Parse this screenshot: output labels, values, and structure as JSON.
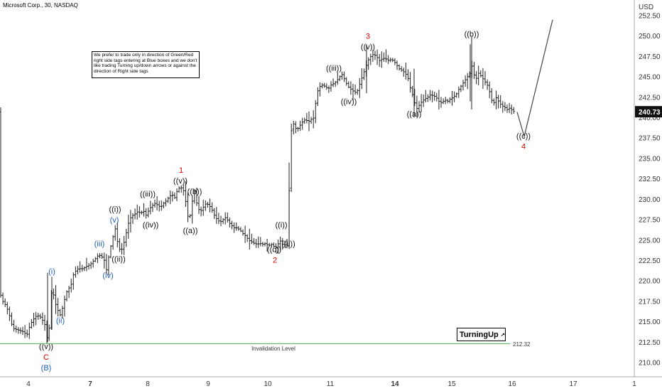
{
  "header": {
    "title": "Microsoft Corp., 30, NASDAQ",
    "currency": "USD"
  },
  "note": "We prefer to trade only in direction of Green/Red right side tags entering at Blue boxes and we don't like trading Turning up/down arrows or against the direction of Right side tags",
  "logo": {
    "text": "TurningUp",
    "icon": "arrow-up-right-icon"
  },
  "invalidation": {
    "label": "Invalidation Level",
    "value": 212.32,
    "value_text": "212.32",
    "color": "#4caf50"
  },
  "current_price": {
    "value": 240.73,
    "text": "240.73"
  },
  "colors": {
    "black": "#111111",
    "red": "#d60000",
    "blue": "#1f5fbf",
    "invalidation": "#4caf50"
  },
  "chart_data": {
    "type": "ohlc",
    "ylim": [
      209,
      253
    ],
    "y_ticks": [
      "210.00",
      "212.50",
      "215.00",
      "217.50",
      "220.00",
      "222.50",
      "225.00",
      "227.50",
      "230.00",
      "232.50",
      "235.00",
      "237.50",
      "240.00",
      "242.50",
      "245.00",
      "247.50",
      "250.00",
      "252.50"
    ],
    "x_ticks": [
      "4",
      "7",
      "8",
      "9",
      "10",
      "11",
      "14",
      "15",
      "16",
      "17",
      "1"
    ],
    "price_path": [
      [
        0,
        218.5
      ],
      [
        4,
        217.5
      ],
      [
        8,
        217.0
      ],
      [
        12,
        216.2
      ],
      [
        18,
        214.2
      ],
      [
        25,
        214.0
      ],
      [
        32,
        213.8
      ],
      [
        38,
        213.4
      ],
      [
        42,
        214.5
      ],
      [
        46,
        215.2
      ],
      [
        52,
        215.8
      ],
      [
        58,
        215.5
      ],
      [
        64,
        214.5
      ],
      [
        67,
        212.5
      ],
      [
        70,
        214.8
      ],
      [
        73,
        219.5
      ],
      [
        77,
        217.5
      ],
      [
        81,
        216.5
      ],
      [
        85,
        215.8
      ],
      [
        89,
        217.0
      ],
      [
        93,
        218.5
      ],
      [
        96,
        219.0
      ],
      [
        100,
        219.5
      ],
      [
        104,
        221.0
      ],
      [
        110,
        221.5
      ],
      [
        116,
        221.5
      ],
      [
        122,
        221.8
      ],
      [
        127,
        222.0
      ],
      [
        131,
        222.4
      ],
      [
        135,
        222.8
      ],
      [
        139,
        223.2
      ],
      [
        143,
        223.0
      ],
      [
        147,
        222.5
      ],
      [
        150,
        221.3
      ],
      [
        154,
        223.5
      ],
      [
        158,
        225.0
      ],
      [
        162,
        226.5
      ],
      [
        166,
        224.5
      ],
      [
        170,
        223.5
      ],
      [
        174,
        224.5
      ],
      [
        178,
        226.0
      ],
      [
        182,
        227.5
      ],
      [
        186,
        228.0
      ],
      [
        190,
        228.2
      ],
      [
        194,
        228.5
      ],
      [
        198,
        228.3
      ],
      [
        202,
        228.6
      ],
      [
        206,
        228.0
      ],
      [
        210,
        228.8
      ],
      [
        214,
        229.2
      ],
      [
        218,
        229.5
      ],
      [
        222,
        229.3
      ],
      [
        226,
        229.0
      ],
      [
        230,
        229.5
      ],
      [
        234,
        229.8
      ],
      [
        238,
        230.3
      ],
      [
        242,
        230.6
      ],
      [
        246,
        230.2
      ],
      [
        250,
        231.2
      ],
      [
        254,
        231.5
      ],
      [
        258,
        231.2
      ],
      [
        262,
        229.5
      ],
      [
        266,
        227.0
      ],
      [
        270,
        229.5
      ],
      [
        274,
        231.0
      ],
      [
        278,
        229.0
      ],
      [
        282,
        228.5
      ],
      [
        286,
        229.0
      ],
      [
        290,
        229.5
      ],
      [
        294,
        229.3
      ],
      [
        298,
        228.8
      ],
      [
        302,
        228.0
      ],
      [
        306,
        227.5
      ],
      [
        310,
        227.2
      ],
      [
        314,
        227.5
      ],
      [
        318,
        227.8
      ],
      [
        322,
        227.2
      ],
      [
        326,
        226.8
      ],
      [
        330,
        226.5
      ],
      [
        334,
        226.5
      ],
      [
        338,
        226.2
      ],
      [
        342,
        225.8
      ],
      [
        346,
        225.5
      ],
      [
        350,
        225.0
      ],
      [
        354,
        224.8
      ],
      [
        358,
        224.6
      ],
      [
        362,
        224.5
      ],
      [
        366,
        224.6
      ],
      [
        370,
        224.5
      ],
      [
        374,
        224.6
      ],
      [
        378,
        224.3
      ],
      [
        382,
        224.5
      ],
      [
        386,
        224.2
      ],
      [
        390,
        224.0
      ],
      [
        393,
        225.0
      ],
      [
        396,
        224.8
      ],
      [
        399,
        224.3
      ],
      [
        402,
        224.5
      ],
      [
        405,
        224.2
      ],
      [
        408,
        234.0
      ],
      [
        411,
        240.0
      ],
      [
        414,
        239.0
      ],
      [
        418,
        238.5
      ],
      [
        422,
        239.0
      ],
      [
        426,
        239.5
      ],
      [
        430,
        239.8
      ],
      [
        434,
        239.5
      ],
      [
        438,
        239.8
      ],
      [
        442,
        240.0
      ],
      [
        446,
        243.0
      ],
      [
        450,
        243.8
      ],
      [
        454,
        244.0
      ],
      [
        458,
        243.8
      ],
      [
        462,
        243.5
      ],
      [
        466,
        244.0
      ],
      [
        470,
        244.2
      ],
      [
        474,
        244.5
      ],
      [
        478,
        245.0
      ],
      [
        482,
        245.3
      ],
      [
        486,
        244.5
      ],
      [
        490,
        243.8
      ],
      [
        494,
        243.5
      ],
      [
        498,
        243.2
      ],
      [
        502,
        243.0
      ],
      [
        506,
        244.0
      ],
      [
        510,
        245.0
      ],
      [
        514,
        246.0
      ],
      [
        518,
        247.0
      ],
      [
        522,
        247.5
      ],
      [
        526,
        247.8
      ],
      [
        530,
        247.5
      ],
      [
        534,
        247.0
      ],
      [
        538,
        247.2
      ],
      [
        542,
        247.3
      ],
      [
        546,
        247.0
      ],
      [
        550,
        247.1
      ],
      [
        554,
        247.0
      ],
      [
        558,
        246.5
      ],
      [
        562,
        246.0
      ],
      [
        566,
        245.8
      ],
      [
        570,
        245.5
      ],
      [
        574,
        245.0
      ],
      [
        578,
        243.5
      ],
      [
        582,
        242.5
      ],
      [
        586,
        241.0
      ],
      [
        590,
        241.5
      ],
      [
        594,
        242.0
      ],
      [
        598,
        242.3
      ],
      [
        602,
        242.5
      ],
      [
        606,
        242.8
      ],
      [
        610,
        242.7
      ],
      [
        614,
        242.5
      ],
      [
        618,
        242.0
      ],
      [
        622,
        241.8
      ],
      [
        626,
        242.2
      ],
      [
        630,
        242.0
      ],
      [
        634,
        242.3
      ],
      [
        638,
        242.5
      ],
      [
        642,
        242.8
      ],
      [
        646,
        243.5
      ],
      [
        650,
        244.0
      ],
      [
        654,
        244.5
      ],
      [
        658,
        245.0
      ],
      [
        662,
        245.5
      ],
      [
        665,
        246.5
      ],
      [
        668,
        245.0
      ],
      [
        671,
        244.8
      ],
      [
        674,
        245.5
      ],
      [
        678,
        245.0
      ],
      [
        682,
        244.5
      ],
      [
        686,
        244.0
      ],
      [
        690,
        243.0
      ],
      [
        694,
        241.5
      ],
      [
        698,
        242.5
      ],
      [
        702,
        242.0
      ],
      [
        706,
        241.5
      ],
      [
        710,
        241.3
      ],
      [
        714,
        241.0
      ],
      [
        718,
        241.2
      ],
      [
        722,
        240.8
      ],
      [
        728,
        240.7
      ]
    ],
    "projection": [
      [
        728,
        240.7
      ],
      [
        738,
        237.7
      ],
      [
        778,
        252.0
      ]
    ],
    "wave_labels": [
      {
        "text": "((v))",
        "color": "black",
        "x": 65,
        "y": 212.0
      },
      {
        "text": "C",
        "color": "red",
        "x": 65,
        "y": 210.7
      },
      {
        "text": "(B)",
        "color": "blue",
        "x": 65,
        "y": 209.4
      },
      {
        "text": "(i)",
        "color": "blue",
        "x": 73,
        "y": 221.2
      },
      {
        "text": "(ii)",
        "color": "blue",
        "x": 85,
        "y": 215.2
      },
      {
        "text": "(iii)",
        "color": "blue",
        "x": 140,
        "y": 224.6
      },
      {
        "text": "(iv)",
        "color": "blue",
        "x": 152,
        "y": 220.7
      },
      {
        "text": "(v)",
        "color": "blue",
        "x": 161,
        "y": 227.5
      },
      {
        "text": "((i))",
        "color": "black",
        "x": 162,
        "y": 228.8
      },
      {
        "text": "((ii))",
        "color": "black",
        "x": 167,
        "y": 222.7
      },
      {
        "text": "((iii))",
        "color": "black",
        "x": 208,
        "y": 230.7
      },
      {
        "text": "((iv))",
        "color": "black",
        "x": 212,
        "y": 226.9
      },
      {
        "text": "((v))",
        "color": "black",
        "x": 254,
        "y": 232.3
      },
      {
        "text": "1",
        "color": "red",
        "x": 255,
        "y": 233.6
      },
      {
        "text": "((b))",
        "color": "black",
        "x": 274,
        "y": 231.0
      },
      {
        "text": "((a))",
        "color": "black",
        "x": 268,
        "y": 226.2
      },
      {
        "text": "((i))",
        "color": "black",
        "x": 396,
        "y": 226.9
      },
      {
        "text": "((ii))",
        "color": "black",
        "x": 406,
        "y": 224.6
      },
      {
        "text": "((c))",
        "color": "black",
        "x": 386,
        "y": 223.9
      },
      {
        "text": "2",
        "color": "red",
        "x": 387,
        "y": 222.6
      },
      {
        "text": "((iii))",
        "color": "black",
        "x": 470,
        "y": 246.1
      },
      {
        "text": "((iv))",
        "color": "black",
        "x": 491,
        "y": 242.0
      },
      {
        "text": "((v))",
        "color": "black",
        "x": 518,
        "y": 248.7
      },
      {
        "text": "3",
        "color": "red",
        "x": 518,
        "y": 250.0
      },
      {
        "text": "((a))",
        "color": "black",
        "x": 583,
        "y": 240.5
      },
      {
        "text": "((b))",
        "color": "black",
        "x": 664,
        "y": 250.3
      },
      {
        "text": "((c))",
        "color": "black",
        "x": 737,
        "y": 237.8
      },
      {
        "text": "4",
        "color": "red",
        "x": 737,
        "y": 236.5
      }
    ]
  }
}
